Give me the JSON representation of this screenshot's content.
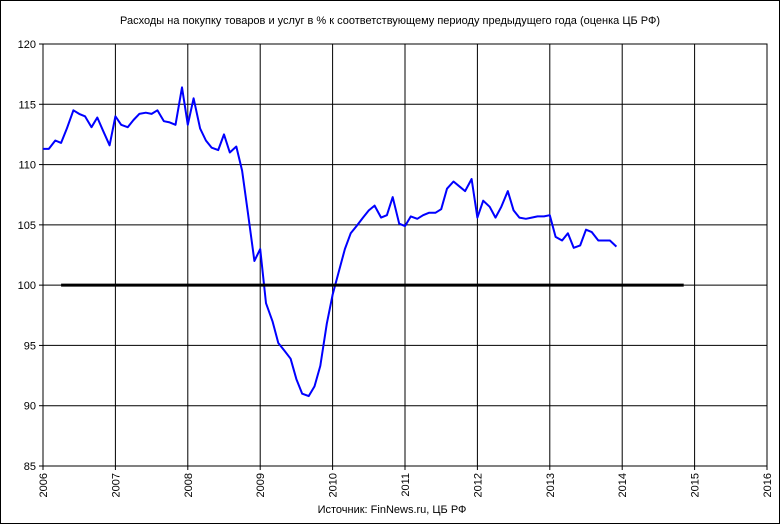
{
  "chart_data": {
    "type": "line",
    "title": "Расходы на покупку товаров и услуг в % к соответствующему периоду предыдущего года (оценка ЦБ РФ)",
    "source_note": "Источник: FinNews.ru, ЦБ РФ",
    "xlabel": "",
    "ylabel": "",
    "xlim": [
      2006,
      2016
    ],
    "ylim": [
      85,
      120
    ],
    "x_ticks": [
      "2006",
      "2007",
      "2008",
      "2009",
      "2010",
      "2011",
      "2012",
      "2013",
      "2014",
      "2015",
      "2016"
    ],
    "y_ticks": [
      "85",
      "90",
      "95",
      "100",
      "105",
      "110",
      "115",
      "120"
    ],
    "grid": true,
    "legend": "none",
    "series": [
      {
        "color": "#0000ff",
        "x": [
          2006.0,
          2006.08,
          2006.17,
          2006.25,
          2006.33,
          2006.42,
          2006.5,
          2006.58,
          2006.67,
          2006.75,
          2006.83,
          2006.92,
          2007.0,
          2007.08,
          2007.17,
          2007.25,
          2007.33,
          2007.42,
          2007.5,
          2007.58,
          2007.67,
          2007.75,
          2007.83,
          2007.92,
          2008.0,
          2008.08,
          2008.17,
          2008.25,
          2008.33,
          2008.42,
          2008.5,
          2008.58,
          2008.67,
          2008.75,
          2008.83,
          2008.92,
          2009.0,
          2009.08,
          2009.17,
          2009.25,
          2009.33,
          2009.42,
          2009.5,
          2009.58,
          2009.67,
          2009.75,
          2009.83,
          2009.92,
          2010.0,
          2010.08,
          2010.17,
          2010.25,
          2010.33,
          2010.42,
          2010.5,
          2010.58,
          2010.67,
          2010.75,
          2010.83,
          2010.92,
          2011.0,
          2011.08,
          2011.17,
          2011.25,
          2011.33,
          2011.42,
          2011.5,
          2011.58,
          2011.67,
          2011.75,
          2011.83,
          2011.92,
          2012.0,
          2012.08,
          2012.17,
          2012.25,
          2012.33,
          2012.42,
          2012.5,
          2012.58,
          2012.67,
          2012.75,
          2012.83,
          2012.92,
          2013.0,
          2013.08,
          2013.17,
          2013.25,
          2013.33,
          2013.42,
          2013.5,
          2013.58,
          2013.67,
          2013.75,
          2013.83,
          2013.92
        ],
        "y": [
          111.3,
          111.3,
          112.0,
          111.8,
          113.0,
          114.5,
          114.2,
          114.0,
          113.1,
          113.9,
          112.8,
          111.6,
          114.0,
          113.3,
          113.1,
          113.7,
          114.2,
          114.3,
          114.2,
          114.5,
          113.6,
          113.5,
          113.3,
          116.4,
          113.3,
          115.5,
          113.0,
          112.0,
          111.4,
          111.2,
          112.5,
          111.0,
          111.5,
          109.5,
          106.0,
          102.0,
          103.0,
          98.5,
          97.0,
          95.2,
          94.6,
          93.9,
          92.2,
          91.0,
          90.8,
          91.6,
          93.3,
          96.8,
          99.2,
          101.0,
          103.0,
          104.3,
          104.9,
          105.6,
          106.2,
          106.6,
          105.6,
          105.8,
          107.3,
          105.1,
          104.9,
          105.7,
          105.5,
          105.8,
          106.0,
          106.0,
          106.3,
          108.0,
          108.6,
          108.2,
          107.8,
          108.8,
          105.6,
          107.0,
          106.5,
          105.6,
          106.5,
          107.8,
          106.2,
          105.6,
          105.5,
          105.6,
          105.7,
          105.7,
          105.8,
          104.0,
          103.7,
          104.3,
          103.1,
          103.3,
          104.6,
          104.4,
          103.7,
          103.7,
          103.7,
          103.2
        ]
      },
      {
        "color": "#000000",
        "x": [
          2006.25,
          2014.85
        ],
        "y": [
          100,
          100
        ]
      }
    ]
  }
}
